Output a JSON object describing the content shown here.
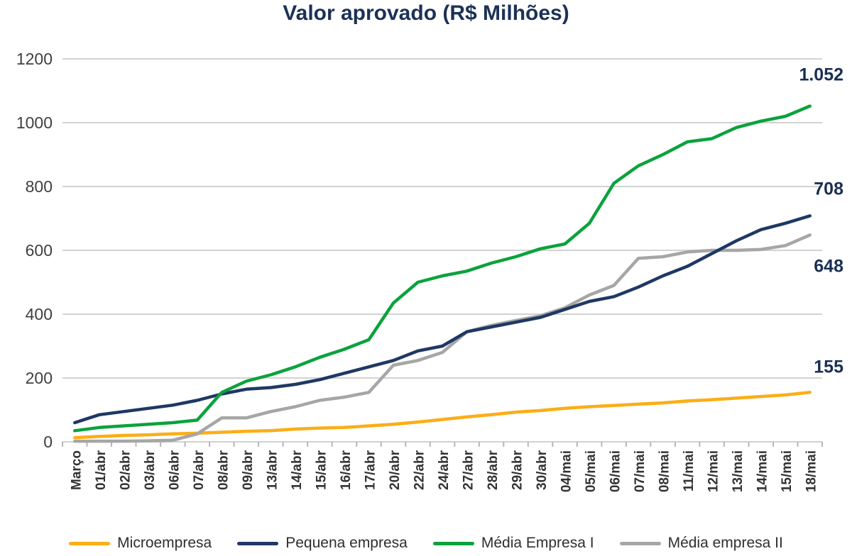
{
  "title": "Valor aprovado (R$ Milhões)",
  "chart_data": {
    "type": "line",
    "title": "Valor aprovado (R$ Milhões)",
    "categories": [
      "Março",
      "01/abr",
      "02/abr",
      "03/abr",
      "06/abr",
      "07/abr",
      "08/abr",
      "09/abr",
      "13/abr",
      "14/abr",
      "15/abr",
      "16/abr",
      "17/abr",
      "20/abr",
      "22/abr",
      "24/abr",
      "27/abr",
      "28/abr",
      "29/abr",
      "30/abr",
      "04/mai",
      "05/mai",
      "06/mai",
      "07/mai",
      "08/mai",
      "11/mai",
      "12/mai",
      "13/mai",
      "14/mai",
      "15/mai",
      "18/mai"
    ],
    "series": [
      {
        "name": "Microempresa",
        "color": "#FAAE17",
        "end_label": "155",
        "values": [
          13,
          17,
          20,
          22,
          25,
          27,
          30,
          33,
          35,
          40,
          43,
          45,
          50,
          55,
          62,
          70,
          78,
          85,
          93,
          98,
          105,
          110,
          114,
          118,
          122,
          128,
          132,
          137,
          142,
          147,
          155
        ]
      },
      {
        "name": "Pequena empresa",
        "color": "#1F3864",
        "end_label": "708",
        "values": [
          60,
          85,
          95,
          105,
          115,
          130,
          150,
          165,
          170,
          180,
          195,
          215,
          235,
          255,
          285,
          300,
          345,
          360,
          375,
          390,
          415,
          440,
          455,
          485,
          520,
          550,
          590,
          630,
          665,
          685,
          708
        ]
      },
      {
        "name": "Média Empresa I",
        "color": "#0BA23C",
        "end_label": "1.052",
        "values": [
          35,
          45,
          50,
          55,
          60,
          68,
          155,
          190,
          210,
          235,
          265,
          290,
          320,
          435,
          500,
          520,
          535,
          560,
          580,
          605,
          620,
          685,
          810,
          865,
          900,
          940,
          950,
          985,
          1005,
          1020,
          1052
        ]
      },
      {
        "name": "Média empresa II",
        "color": "#A6A6A6",
        "end_label": "648",
        "values": [
          2,
          2,
          2,
          3,
          5,
          25,
          75,
          75,
          95,
          110,
          130,
          140,
          155,
          240,
          255,
          280,
          345,
          365,
          380,
          395,
          420,
          460,
          490,
          575,
          580,
          595,
          600,
          600,
          603,
          615,
          648
        ]
      }
    ],
    "ylim": [
      0,
      1200
    ],
    "yticks": [
      0,
      200,
      400,
      600,
      800,
      1000,
      1200
    ],
    "grid": true,
    "legend_position": "bottom"
  }
}
